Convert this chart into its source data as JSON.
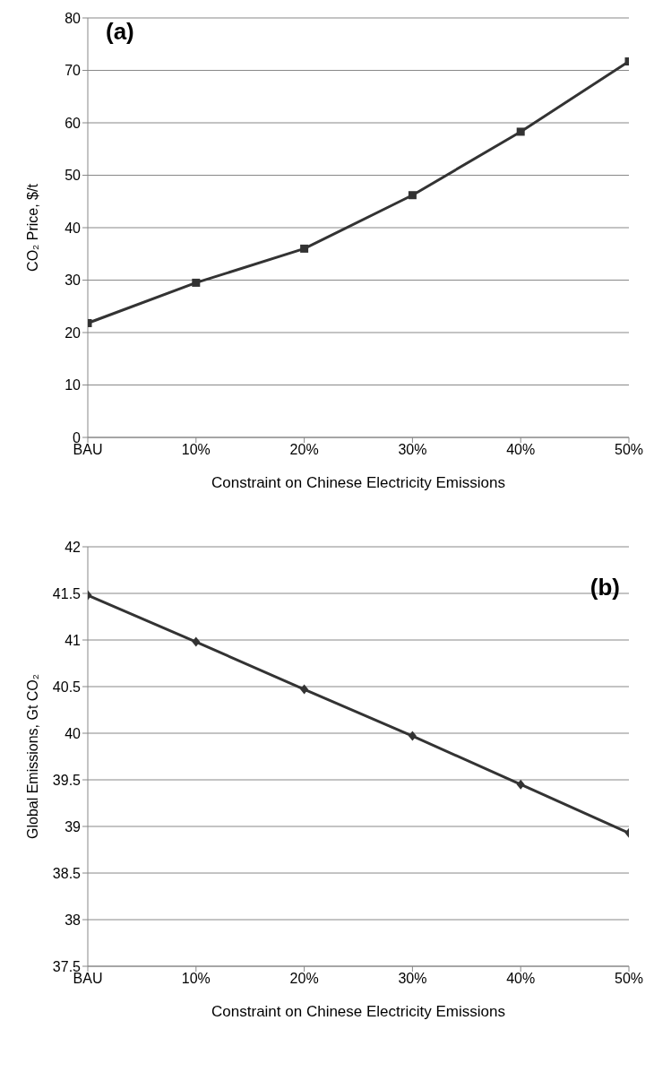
{
  "chart_data": [
    {
      "type": "line",
      "categories": [
        "BAU",
        "10%",
        "20%",
        "30%",
        "40%",
        "50%"
      ],
      "xlabel": "Constraint on Chinese Electricity Emissions",
      "ylabel": "CO₂ Price, $/t",
      "annotations": [
        "(a)"
      ],
      "series": [
        {
          "color": "#333333",
          "values": [
            21.8,
            29.5,
            36,
            46.2,
            58.3,
            71.7
          ]
        }
      ],
      "ylim": [
        0,
        80
      ],
      "yticks": [
        0,
        10,
        20,
        30,
        40,
        50,
        60,
        70,
        80
      ],
      "grid": "y",
      "marker": "square",
      "line_style": "solid",
      "legend": false
    },
    {
      "type": "line",
      "categories": [
        "BAU",
        "10%",
        "20%",
        "30%",
        "40%",
        "50%"
      ],
      "xlabel": "Constraint on Chinese Electricity Emissions",
      "ylabel": "Global Emissions, Gt CO₂",
      "annotations": [
        "(b)"
      ],
      "series": [
        {
          "color": "#333333",
          "values": [
            41.48,
            40.98,
            40.47,
            39.97,
            39.45,
            38.93
          ]
        }
      ],
      "ylim": [
        37.5,
        42
      ],
      "yticks": [
        37.5,
        38,
        38.5,
        39,
        39.5,
        40,
        40.5,
        41,
        41.5,
        42
      ],
      "grid": "y",
      "marker": "diamond",
      "line_style": "solid",
      "legend": false
    }
  ]
}
